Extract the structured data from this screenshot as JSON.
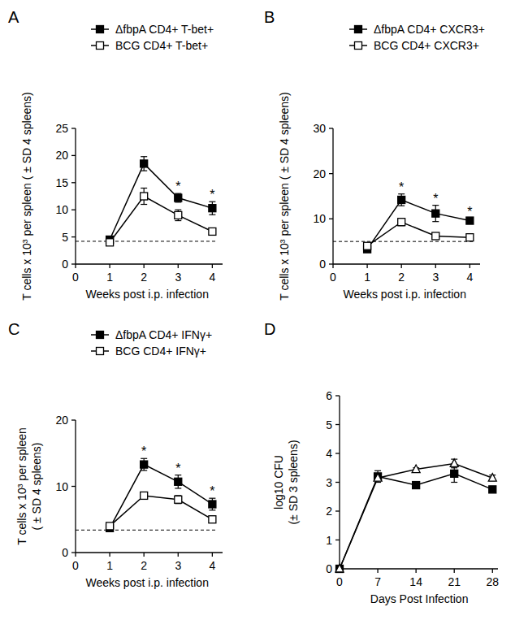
{
  "chart_data": [
    {
      "type": "line",
      "title": "A",
      "xlabel": "Weeks post i.p. infection",
      "ylabel": [
        "T cells x 10³ per spleen  ( ± SD 4 spleens)"
      ],
      "x": [
        1,
        2,
        3,
        4
      ],
      "xlim": [
        0,
        4.3
      ],
      "xticks": [
        0,
        1,
        2,
        3,
        4
      ],
      "ylim": [
        0,
        25
      ],
      "yticks": [
        0,
        5,
        10,
        15,
        20,
        25
      ],
      "legend": "top",
      "series": [
        {
          "name": "ΔfbpA CD4+ T-bet+",
          "color": "#000000",
          "marker": "square",
          "values": [
            4.5,
            18.5,
            12.2,
            10.3
          ],
          "errors": [
            0.3,
            1.3,
            0.8,
            1.2
          ]
        },
        {
          "name": "BCG CD4+ T-bet+",
          "color": "#000000",
          "marker": "square-open",
          "values": [
            4.0,
            12.5,
            9.0,
            6.0
          ],
          "errors": [
            0.3,
            1.5,
            1.0,
            0.4
          ]
        }
      ],
      "baseline": 4.2,
      "annotations": [
        {
          "text": "*",
          "x": 3
        },
        {
          "text": "*",
          "x": 4
        }
      ]
    },
    {
      "type": "line",
      "title": "B",
      "xlabel": "Weeks post i.p. infection",
      "ylabel": [
        "T cells x 10³ per spleen  ( ± SD 4 spleens)"
      ],
      "x": [
        1,
        2,
        3,
        4
      ],
      "xlim": [
        0,
        4.3
      ],
      "xticks": [
        0,
        1,
        2,
        3,
        4
      ],
      "ylim": [
        0,
        30
      ],
      "yticks": [
        0,
        10,
        20,
        30
      ],
      "legend": "top",
      "series": [
        {
          "name": "ΔfbpA CD4+ CXCR3+",
          "color": "#000000",
          "marker": "square",
          "values": [
            3.3,
            14.2,
            11.2,
            9.6
          ],
          "errors": [
            0.4,
            1.3,
            1.8,
            0.5
          ]
        },
        {
          "name": "BCG CD4+ CXCR3+",
          "color": "#000000",
          "marker": "square-open",
          "values": [
            4.0,
            9.3,
            6.2,
            5.9
          ],
          "errors": [
            0.3,
            0.8,
            0.3,
            0.3
          ]
        }
      ],
      "baseline": 5,
      "annotations": [
        {
          "text": "*",
          "x": 2
        },
        {
          "text": "*",
          "x": 3
        },
        {
          "text": "*",
          "x": 4
        }
      ]
    },
    {
      "type": "line",
      "title": "C",
      "xlabel": "Weeks post i.p. infection",
      "ylabel": [
        "T cells x 10³ per spleen",
        "( ± SD 4 spleens)"
      ],
      "x": [
        1,
        2,
        3,
        4
      ],
      "xlim": [
        0,
        4.3
      ],
      "xticks": [
        0,
        1,
        2,
        3,
        4
      ],
      "ylim": [
        0,
        20
      ],
      "yticks": [
        0,
        10,
        20
      ],
      "legend": "top",
      "series": [
        {
          "name": "ΔfbpA CD4+ IFNγ+",
          "color": "#000000",
          "marker": "square",
          "values": [
            3.7,
            13.3,
            10.7,
            7.3
          ],
          "errors": [
            0.3,
            0.9,
            1.0,
            0.9
          ]
        },
        {
          "name": "BCG CD4+ IFNγ+",
          "color": "#000000",
          "marker": "square-open",
          "values": [
            4.0,
            8.6,
            8.0,
            5.0
          ],
          "errors": [
            0.4,
            0.3,
            0.6,
            0.5
          ]
        }
      ],
      "baseline": 3.4,
      "annotations": [
        {
          "text": "*",
          "x": 2
        },
        {
          "text": "*",
          "x": 3
        },
        {
          "text": "*",
          "x": 4
        }
      ]
    },
    {
      "type": "line",
      "title": "D",
      "xlabel": "Days Post Infection",
      "ylabel": [
        "log10 CFU",
        "(± SD 3 spleens)"
      ],
      "x": [
        0,
        7,
        14,
        21,
        28
      ],
      "xlim": [
        0,
        29
      ],
      "xticks": [
        0,
        7,
        14,
        21,
        28
      ],
      "ylim": [
        0,
        6
      ],
      "yticks": [
        0,
        1,
        2,
        3,
        4,
        5,
        6
      ],
      "series": [
        {
          "color": "#000000",
          "marker": "square",
          "values": [
            0,
            3.2,
            2.9,
            3.3,
            2.75
          ],
          "errors": [
            0,
            0.2,
            0.05,
            0.3,
            0.05
          ]
        },
        {
          "color": "#000000",
          "marker": "triangle-open",
          "values": [
            0,
            3.15,
            3.45,
            3.65,
            3.15
          ],
          "errors": [
            0,
            0.1,
            0.05,
            0.15,
            0.1
          ]
        }
      ]
    }
  ]
}
